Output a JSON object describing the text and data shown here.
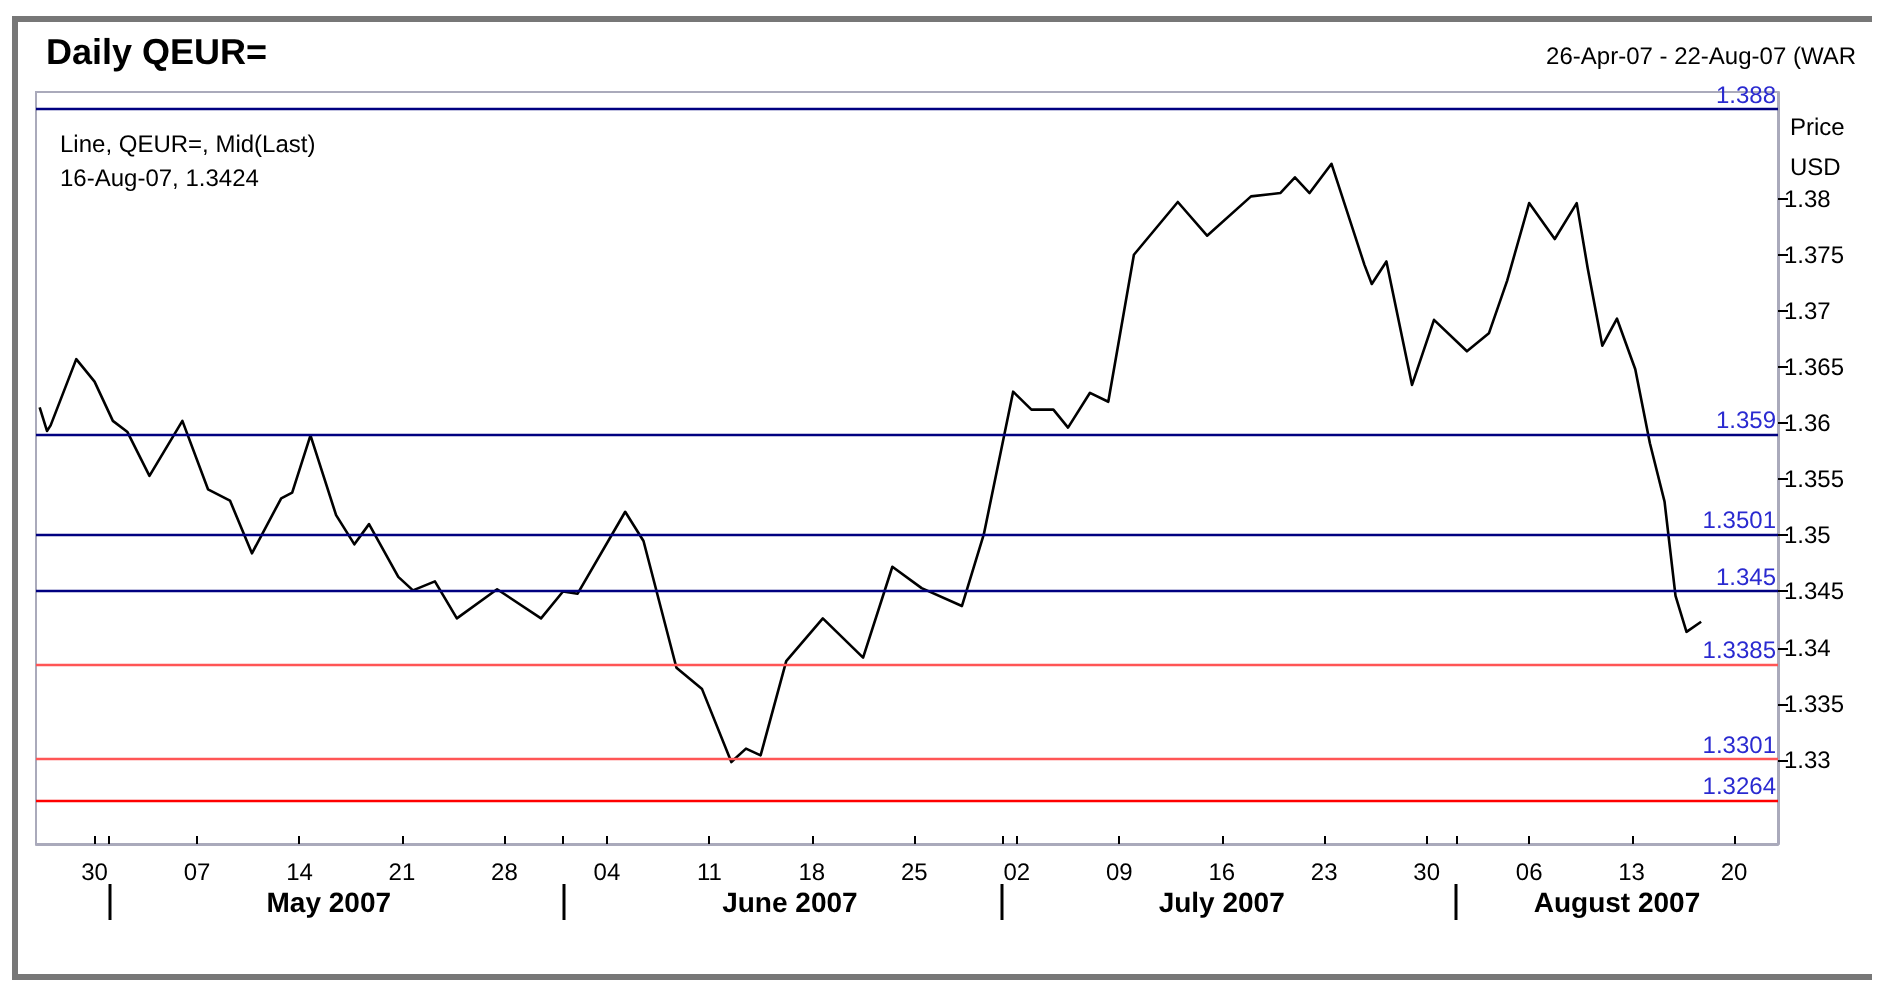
{
  "chart_data": {
    "type": "line",
    "title": "Daily QEUR=",
    "subtitle": "26-Apr-07 - 22-Aug-07 (WAR",
    "ylabel": "Price\nUSD",
    "annotations": [
      "Line, QEUR=, Mid(Last)",
      "16-Aug-07, 1.3424"
    ],
    "x": [
      "2007-04-26T06:00",
      "2007-04-26T18:00",
      "2007-04-27T00:00",
      "2007-04-28T18:00",
      "2007-04-30T00:00",
      "2007-05-01T06:00",
      "2007-05-02T06:00",
      "2007-05-03T18:00",
      "2007-05-06T00:00",
      "2007-05-07T18:00",
      "2007-05-09T06:00",
      "2007-05-10T18:00",
      "2007-05-12T18:00",
      "2007-05-13T12:00",
      "2007-05-14T18:00",
      "2007-05-16T12:00",
      "2007-05-17T18:00",
      "2007-05-18T18:00",
      "2007-05-20T18:00",
      "2007-05-21T18:00",
      "2007-05-23T06:00",
      "2007-05-24T18:00",
      "2007-05-27T12:00",
      "2007-05-30T12:00",
      "2007-06-01T00:00",
      "2007-06-02T00:00",
      "2007-06-05T06:00",
      "2007-06-06T12:00",
      "2007-06-08T18:00",
      "2007-06-10T12:00",
      "2007-06-12T12:00",
      "2007-06-13T12:00",
      "2007-06-14T12:00",
      "2007-06-16T06:00",
      "2007-06-18T18:00",
      "2007-06-21T12:00",
      "2007-06-23T12:00",
      "2007-06-25T12:00",
      "2007-06-28T06:00",
      "2007-06-29T18:00",
      "2007-07-01T18:00",
      "2007-07-03T00:00",
      "2007-07-04T12:00",
      "2007-07-05T12:00",
      "2007-07-07T00:00",
      "2007-07-08T06:00",
      "2007-07-10T00:00",
      "2007-07-13T00:00",
      "2007-07-15T00:00",
      "2007-07-18T00:00",
      "2007-07-20T00:00",
      "2007-07-21T00:00",
      "2007-07-22T00:00",
      "2007-07-23T12:00",
      "2007-07-25T18:00",
      "2007-07-26T06:00",
      "2007-07-27T06:00",
      "2007-07-29T00:00",
      "2007-07-30T12:00",
      "2007-08-01T18:00",
      "2007-08-03T06:00",
      "2007-08-04T12:00",
      "2007-08-06T00:00",
      "2007-08-07T18:00",
      "2007-08-09T06:00",
      "2007-08-10T00:00",
      "2007-08-11T00:00",
      "2007-08-12T00:00",
      "2007-08-13T06:00",
      "2007-08-14T06:00",
      "2007-08-15T06:00",
      "2007-08-16T00:00",
      "2007-08-16T18:00",
      "2007-08-17T18:00"
    ],
    "series": [
      {
        "color": "#000000",
        "values": [
          1.3614,
          1.3593,
          1.3598,
          1.3657,
          1.3637,
          1.3602,
          1.3592,
          1.3553,
          1.3602,
          1.3541,
          1.3531,
          1.3484,
          1.3533,
          1.3538,
          1.3589,
          1.3518,
          1.3492,
          1.351,
          1.3463,
          1.3451,
          1.3459,
          1.3426,
          1.3452,
          1.3426,
          1.345,
          1.3448,
          1.3521,
          1.3495,
          1.3382,
          1.3363,
          1.3298,
          1.331,
          1.3304,
          1.3388,
          1.3426,
          1.3391,
          1.3472,
          1.3453,
          1.3437,
          1.3501,
          1.3628,
          1.3612,
          1.3612,
          1.3596,
          1.3627,
          1.3619,
          1.375,
          1.3797,
          1.3767,
          1.3802,
          1.3805,
          1.3819,
          1.3805,
          1.3831,
          1.3741,
          1.3724,
          1.3744,
          1.3634,
          1.3692,
          1.3664,
          1.368,
          1.3727,
          1.3796,
          1.3764,
          1.3796,
          1.3738,
          1.3669,
          1.3693,
          1.3648,
          1.3582,
          1.353,
          1.3446,
          1.3414,
          1.3423
        ]
      }
    ],
    "xlim": [
      "2007-04-26",
      "2007-08-23"
    ],
    "xticks": [
      {
        "value": "2007-05-01",
        "label": null
      },
      {
        "value": "2007-06-01",
        "label": null
      },
      {
        "value": "2007-07-01",
        "label": null
      },
      {
        "value": "2007-08-01",
        "label": null
      },
      {
        "value": "2007-04-30",
        "label": "30"
      },
      {
        "value": "2007-05-07",
        "label": "07"
      },
      {
        "value": "2007-05-14",
        "label": "14"
      },
      {
        "value": "2007-05-21",
        "label": "21"
      },
      {
        "value": "2007-05-28",
        "label": "28"
      },
      {
        "value": "2007-06-04",
        "label": "04"
      },
      {
        "value": "2007-06-11",
        "label": "11"
      },
      {
        "value": "2007-06-18",
        "label": "18"
      },
      {
        "value": "2007-06-25",
        "label": "25"
      },
      {
        "value": "2007-07-02",
        "label": "02"
      },
      {
        "value": "2007-07-09",
        "label": "09"
      },
      {
        "value": "2007-07-16",
        "label": "16"
      },
      {
        "value": "2007-07-23",
        "label": "23"
      },
      {
        "value": "2007-07-30",
        "label": "30"
      },
      {
        "value": "2007-08-06",
        "label": "06"
      },
      {
        "value": "2007-08-13",
        "label": "13"
      },
      {
        "value": "2007-08-20",
        "label": "20"
      }
    ],
    "x2lim": [
      "2007-04-26",
      "2007-08-23"
    ],
    "x2ticks": [
      {
        "value": "2007-05-16",
        "label": "May 2007"
      },
      {
        "value": "2007-06-16T12:00",
        "label": "June 2007"
      },
      {
        "value": "2007-07-16",
        "label": "July 2007"
      },
      {
        "value": "2007-08-12",
        "label": "August 2007"
      }
    ],
    "ylim": [
      1.3225,
      1.3895
    ],
    "yticks": [
      1.33,
      1.335,
      1.34,
      1.345,
      1.35,
      1.355,
      1.36,
      1.365,
      1.37,
      1.375,
      1.38
    ],
    "ref_lines": [
      {
        "axis": "y",
        "value": 1.388,
        "label": "1.388",
        "color": "#000080"
      },
      {
        "axis": "y",
        "value": 1.359,
        "label": "1.359",
        "color": "#000080"
      },
      {
        "axis": "y",
        "value": 1.3501,
        "label": "1.3501",
        "color": "#000080"
      },
      {
        "axis": "y",
        "value": 1.345,
        "label": "1.345",
        "color": "#000080"
      },
      {
        "axis": "y",
        "value": 1.3385,
        "label": "1.3385",
        "color": "#ff5555"
      },
      {
        "axis": "y",
        "value": 1.3301,
        "label": "1.3301",
        "color": "#ff5555"
      },
      {
        "axis": "y",
        "value": 1.3264,
        "label": "1.3264",
        "color": "#ff0000"
      }
    ],
    "grid": false,
    "marker": "none",
    "line_style": "solid"
  }
}
